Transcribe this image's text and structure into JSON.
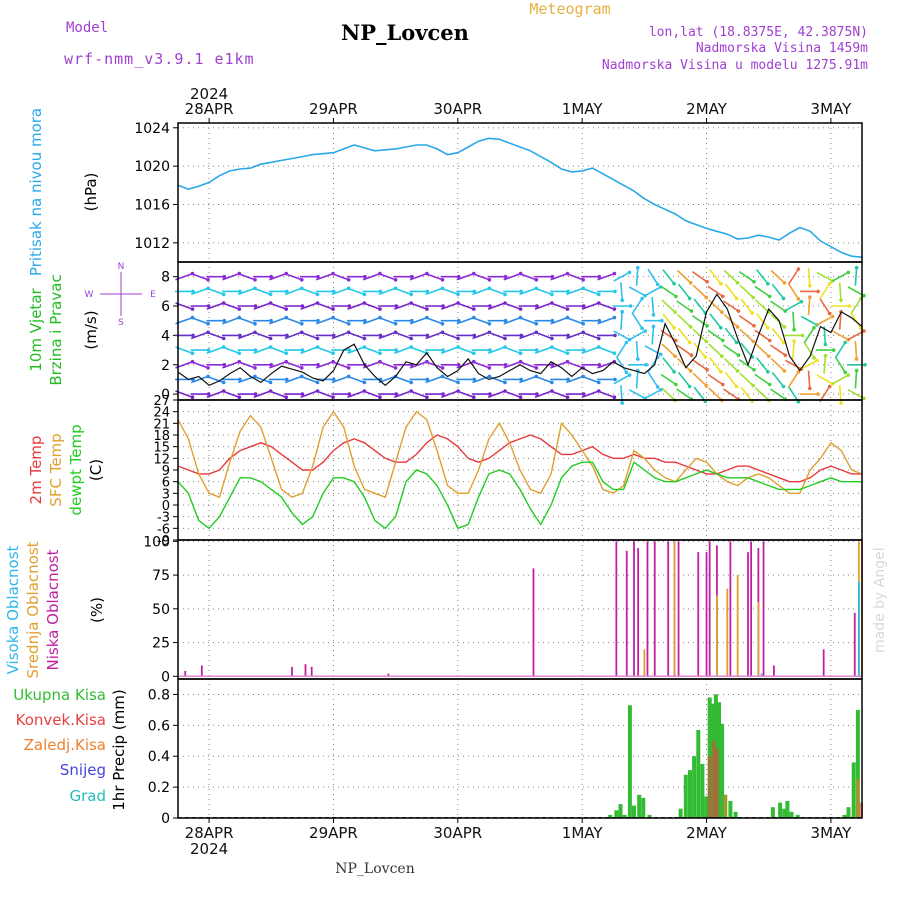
{
  "header": {
    "model_label": "Model",
    "model_name": "wrf-nmm_v3.9.1 e1km",
    "station": "NP_Lovcen",
    "product": "Meteogram",
    "coords": "lon,lat (18.8375E, 42.3875N)",
    "height": "Nadmorska Visina 1459m",
    "model_height": "Nadmorska Visina u modelu 1275.91m"
  },
  "credit": "made by Angel",
  "footer_station": "NP_Lovcen",
  "colors": {
    "pressure": "#2aa8e8",
    "wind_label": "#22bb22",
    "temp2m": "#e83a3a",
    "sfc": "#e0a030",
    "dewpt": "#22cc22",
    "cloud_high": "#30b8e8",
    "cloud_mid": "#e0a030",
    "cloud_low": "#c020a0",
    "precip_total": "#33bb33",
    "precip_conv": "#e84040",
    "precip_frozen": "#f08030",
    "snow": "#4444dd",
    "hail": "#22bbbb",
    "purple": "#a040d0"
  },
  "chart_data": {
    "type": "multi-panel meteogram",
    "time_axis": {
      "year": "2024",
      "dates": [
        "28APR",
        "29APR",
        "30APR",
        "1MAY",
        "2MAY",
        "3MAY"
      ],
      "start_hours_before_first_tick": 6,
      "end_hours_after_last_tick": 6
    },
    "panels": {
      "pressure": {
        "label": "Pritisak na nivou mora",
        "unit": "(hPa)",
        "ylim": [
          1010,
          1024.5
        ],
        "ticks": [
          "1012",
          "1016",
          "1020",
          "1024"
        ],
        "tick_values": [
          1012,
          1016,
          1020,
          1024
        ],
        "hourly_values": [
          1018.0,
          1017.6,
          1017.9,
          1018.3,
          1019.0,
          1019.5,
          1019.7,
          1019.8,
          1020.2,
          1020.4,
          1020.6,
          1020.8,
          1021.0,
          1021.2,
          1021.3,
          1021.4,
          1021.8,
          1022.2,
          1021.9,
          1021.6,
          1021.7,
          1021.8,
          1022.0,
          1022.2,
          1022.2,
          1021.8,
          1021.2,
          1021.4,
          1022.0,
          1022.6,
          1022.9,
          1022.8,
          1022.4,
          1022.0,
          1021.6,
          1021.0,
          1020.4,
          1019.7,
          1019.4,
          1019.5,
          1019.8,
          1019.2,
          1018.6,
          1018.0,
          1017.4,
          1016.6,
          1016.0,
          1015.5,
          1015.0,
          1014.3,
          1013.9,
          1013.5,
          1013.2,
          1012.9,
          1012.4,
          1012.5,
          1012.8,
          1012.6,
          1012.3,
          1013.0,
          1013.6,
          1013.2,
          1012.2,
          1011.6,
          1011.0,
          1010.6,
          1010.5
        ]
      },
      "wind": {
        "label": "10m Vjetar Brzina i Pravac",
        "unit": "(m/s)",
        "ylim": [
          -0.4,
          9.0
        ],
        "ticks": [
          "0",
          "2",
          "4",
          "6",
          "8"
        ],
        "tick_values": [
          0,
          2,
          4,
          6,
          8
        ],
        "compass": [
          "N",
          "W",
          "E",
          "S"
        ]
      },
      "temperature": {
        "labels": [
          "2m Temp",
          "SFC Temp",
          "dewpt Temp"
        ],
        "unit": "(C)",
        "ylim": [
          -9,
          27
        ],
        "ticks": [
          "-9",
          "-6",
          "-3",
          "0",
          "3",
          "6",
          "9",
          "12",
          "15",
          "18",
          "21",
          "24",
          "27"
        ],
        "tick_values": [
          -9,
          -6,
          -3,
          0,
          3,
          6,
          9,
          12,
          15,
          18,
          21,
          24,
          27
        ],
        "series": [
          {
            "name": "2m Temp",
            "hourly_values": [
              10,
              9,
              8,
              8,
              9,
              12,
              14,
              15,
              16,
              15,
              13,
              11,
              9,
              9,
              11,
              14,
              16,
              17,
              16,
              14,
              12,
              11,
              11,
              13,
              16,
              18,
              17,
              15,
              12,
              11,
              12,
              14,
              16,
              17,
              18,
              17,
              15,
              13,
              13,
              14,
              15,
              13,
              12,
              12,
              13,
              12,
              12,
              11,
              11,
              10,
              9,
              8,
              8,
              9,
              10,
              10,
              9,
              8,
              7,
              6,
              6,
              7,
              9,
              10,
              9,
              8,
              8
            ]
          },
          {
            "name": "SFC Temp",
            "hourly_values": [
              22,
              17,
              8,
              3,
              2,
              11,
              19,
              23,
              20,
              12,
              4,
              2,
              3,
              10,
              20,
              24,
              20,
              10,
              4,
              3,
              2,
              11,
              20,
              24,
              22,
              14,
              5,
              3,
              3,
              9,
              17,
              21,
              16,
              9,
              4,
              3,
              8,
              21,
              18,
              14,
              10,
              4,
              3,
              5,
              14,
              12,
              9,
              7,
              6,
              9,
              12,
              11,
              8,
              6,
              5,
              7,
              8,
              7,
              5,
              3,
              3,
              9,
              12,
              16,
              14,
              9,
              8
            ]
          },
          {
            "name": "dewpt Temp",
            "hourly_values": [
              6,
              3,
              -4,
              -6,
              -3,
              2,
              7,
              7,
              6,
              4,
              2,
              -2,
              -5,
              -3,
              3,
              7,
              7,
              6,
              2,
              -4,
              -6,
              -3,
              6,
              9,
              8,
              5,
              0,
              -6,
              -5,
              2,
              8,
              9,
              8,
              4,
              -1,
              -5,
              0,
              7,
              10,
              11,
              11,
              6,
              4,
              4,
              11,
              9,
              7,
              6,
              6,
              7,
              8,
              9,
              8,
              7,
              7,
              7,
              6,
              5,
              4,
              4,
              4,
              5,
              6,
              7,
              6,
              6,
              6
            ]
          }
        ]
      },
      "clouds": {
        "labels": [
          "Visoka Oblacnost",
          "Srednja Oblacnost",
          "Niska Oblacnost"
        ],
        "unit": "(%)",
        "ylim": [
          -2,
          101
        ],
        "ticks": [
          "0",
          "25",
          "50",
          "75",
          "100"
        ],
        "tick_values": [
          0,
          25,
          50,
          75,
          100
        ],
        "low": [
          [
            0.7,
            4
          ],
          [
            2.3,
            8
          ],
          [
            11.0,
            7
          ],
          [
            12.3,
            9
          ],
          [
            12.9,
            7
          ],
          [
            20.3,
            2
          ],
          [
            34.3,
            80
          ],
          [
            42.3,
            100
          ],
          [
            43.3,
            93
          ],
          [
            44.0,
            100
          ],
          [
            44.4,
            95
          ],
          [
            45.3,
            100
          ],
          [
            46.0,
            100
          ],
          [
            47.3,
            100
          ],
          [
            47.9,
            100
          ],
          [
            48.3,
            100
          ],
          [
            50.2,
            92
          ],
          [
            51.0,
            92
          ],
          [
            51.3,
            100
          ],
          [
            52.0,
            97
          ],
          [
            53.3,
            100
          ],
          [
            55.0,
            92
          ],
          [
            55.3,
            100
          ],
          [
            56.0,
            95
          ],
          [
            56.5,
            100
          ],
          [
            57.5,
            8
          ],
          [
            62.3,
            20
          ],
          [
            65.3,
            47
          ]
        ],
        "mid": [
          [
            45.0,
            20
          ],
          [
            47.9,
            100
          ],
          [
            52.0,
            60
          ],
          [
            53.0,
            65
          ],
          [
            54.0,
            75
          ],
          [
            56.0,
            55
          ],
          [
            65.7,
            100
          ],
          [
            66.0,
            100
          ]
        ],
        "high": [
          [
            56.3,
            2
          ],
          [
            65.7,
            70
          ]
        ]
      },
      "precip": {
        "labels": [
          "Ukupna Kisa",
          "Konvek.Kisa",
          "Zaledj.Kisa",
          "Snijeg",
          "Grad"
        ],
        "unit": "1hr Precip (mm)",
        "ylim": [
          0,
          0.9
        ],
        "ticks": [
          "0",
          "0.2",
          "0.4",
          "0.6",
          "0.8"
        ],
        "tick_values": [
          0,
          0.2,
          0.4,
          0.6,
          0.8
        ],
        "total": [
          [
            41.7,
            0.02
          ],
          [
            42.3,
            0.05
          ],
          [
            42.7,
            0.09
          ],
          [
            43.1,
            0.02
          ],
          [
            43.6,
            0.73
          ],
          [
            44.0,
            0.08
          ],
          [
            44.5,
            0.15
          ],
          [
            44.9,
            0.13
          ],
          [
            45.5,
            0.02
          ],
          [
            48.5,
            0.06
          ],
          [
            49.0,
            0.28
          ],
          [
            49.4,
            0.31
          ],
          [
            49.8,
            0.4
          ],
          [
            50.2,
            0.57
          ],
          [
            50.6,
            0.35
          ],
          [
            51.0,
            0.14
          ],
          [
            51.3,
            0.78
          ],
          [
            51.6,
            0.74
          ],
          [
            51.9,
            0.8
          ],
          [
            52.2,
            0.75
          ],
          [
            52.5,
            0.61
          ],
          [
            52.8,
            0.15
          ],
          [
            53.3,
            0.11
          ],
          [
            53.8,
            0.04
          ],
          [
            57.4,
            0.07
          ],
          [
            58.1,
            0.1
          ],
          [
            58.5,
            0.06
          ],
          [
            58.8,
            0.11
          ],
          [
            59.2,
            0.04
          ],
          [
            59.8,
            0.02
          ],
          [
            64.3,
            0.02
          ],
          [
            64.7,
            0.07
          ],
          [
            65.2,
            0.36
          ],
          [
            65.6,
            0.7
          ]
        ],
        "conv": [
          [
            51.3,
            0.4
          ],
          [
            51.7,
            0.5
          ],
          [
            52.0,
            0.45
          ],
          [
            65.9,
            0.1
          ]
        ],
        "frozen": [
          [
            52.8,
            0.15
          ],
          [
            65.6,
            0.25
          ]
        ]
      }
    }
  }
}
